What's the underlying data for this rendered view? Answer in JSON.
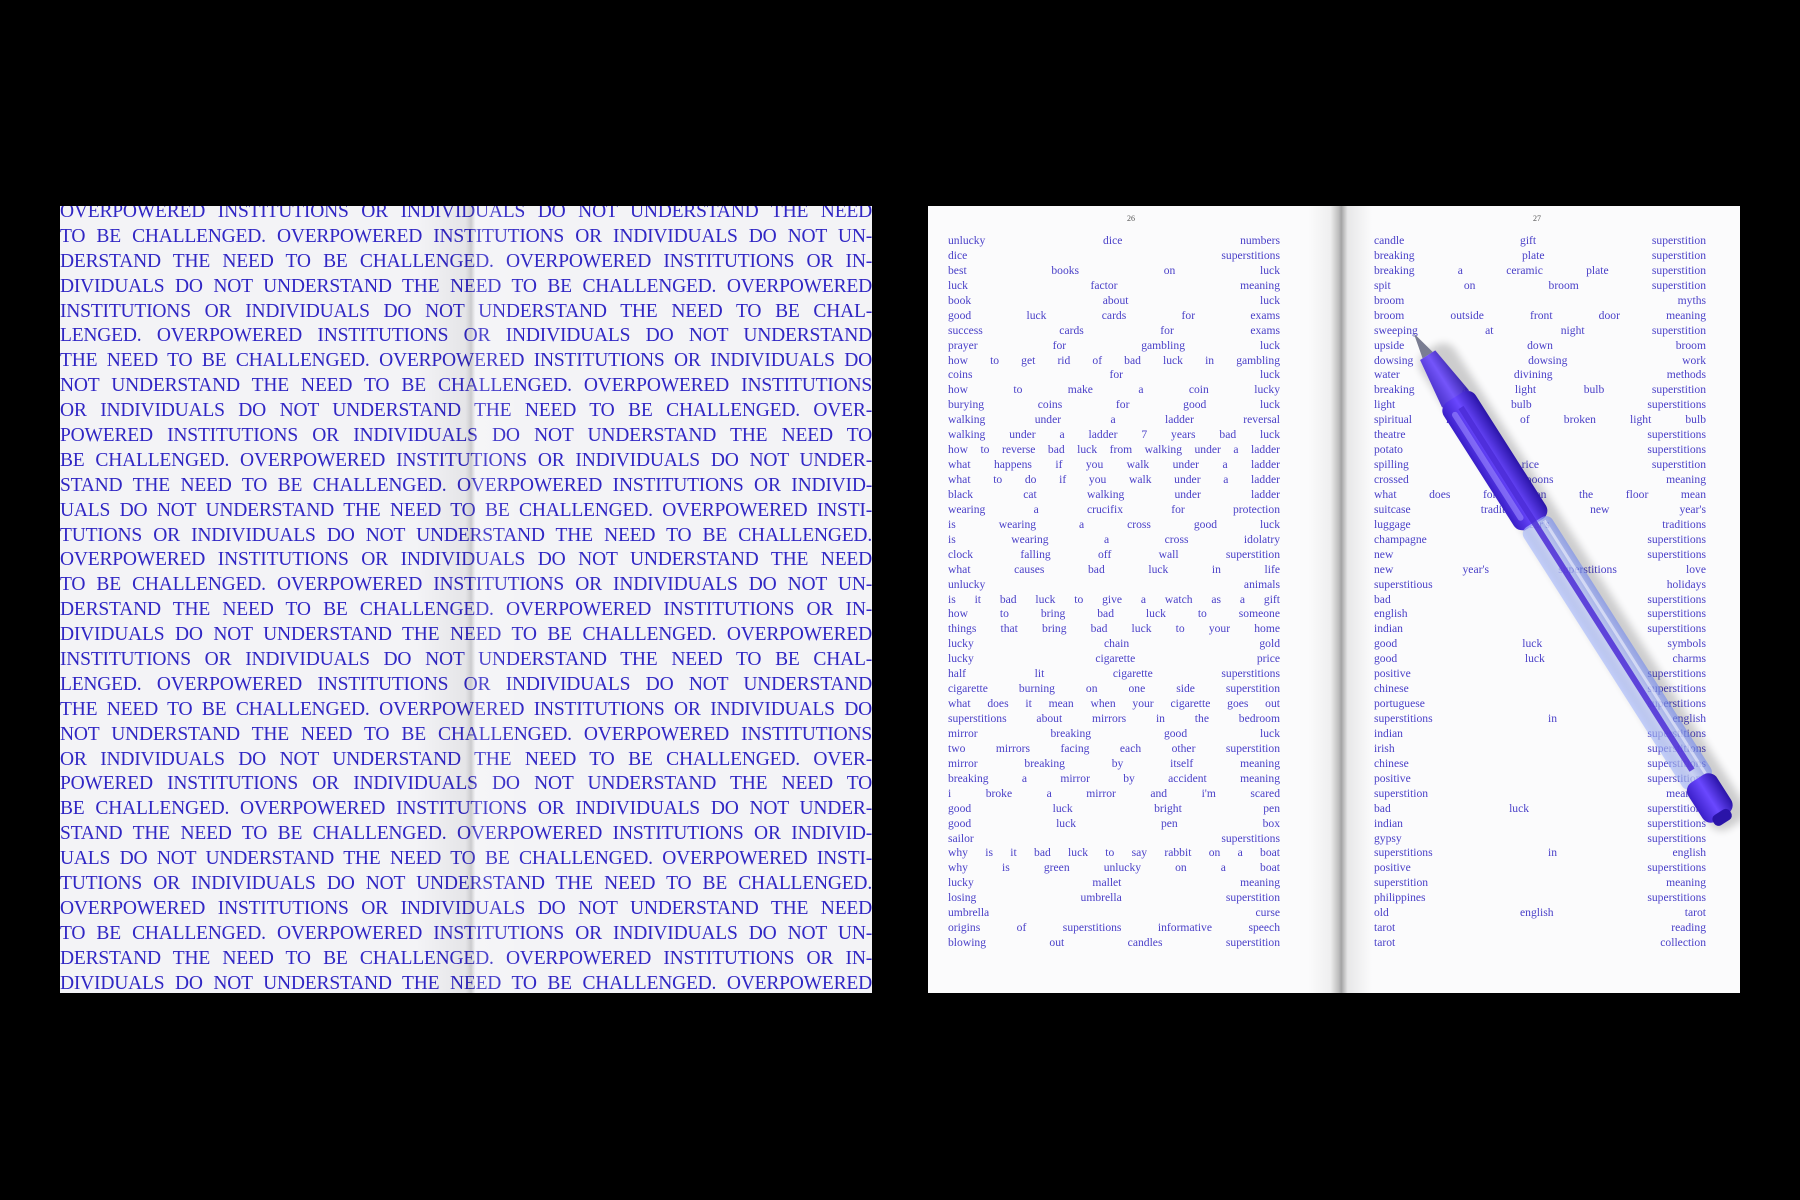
{
  "left_spread": {
    "lines": [
      "OVERPOWERED INSTITUTIONS OR INDIVIDUALS DO NOT UNDERSTAND THE NEED",
      "TO BE CHALLENGED. OVERPOWERED INSTITUTIONS OR INDIVIDUALS DO NOT UN-",
      "DERSTAND THE NEED TO BE CHALLENGED. OVERPOWERED INSTITUTIONS OR IN-",
      "DIVIDUALS DO NOT UNDERSTAND THE NEED TO BE CHALLENGED. OVERPOWERED",
      "INSTITUTIONS OR INDIVIDUALS DO NOT UNDERSTAND THE NEED TO BE CHAL-",
      "LENGED. OVERPOWERED INSTITUTIONS OR INDIVIDUALS DO NOT UNDERSTAND",
      "THE NEED TO BE CHALLENGED. OVERPOWERED INSTITUTIONS OR INDIVIDUALS DO",
      "NOT UNDERSTAND THE NEED TO BE CHALLENGED. OVERPOWERED INSTITUTIONS",
      "OR INDIVIDUALS DO NOT UNDERSTAND THE NEED TO BE CHALLENGED. OVER-",
      "POWERED INSTITUTIONS OR INDIVIDUALS DO NOT UNDERSTAND THE NEED TO",
      "BE CHALLENGED. OVERPOWERED INSTITUTIONS OR INDIVIDUALS DO NOT UNDER-",
      "STAND THE NEED TO BE CHALLENGED. OVERPOWERED INSTITUTIONS OR INDIVID-",
      "UALS DO NOT UNDERSTAND THE NEED TO BE CHALLENGED. OVERPOWERED INSTI-",
      "TUTIONS OR INDIVIDUALS DO NOT UNDERSTAND THE NEED TO BE CHALLENGED.",
      "OVERPOWERED INSTITUTIONS OR INDIVIDUALS DO NOT UNDERSTAND THE NEED",
      "TO BE CHALLENGED. OVERPOWERED INSTITUTIONS OR INDIVIDUALS DO NOT UN-",
      "DERSTAND THE NEED TO BE CHALLENGED. OVERPOWERED INSTITUTIONS OR IN-",
      "DIVIDUALS DO NOT UNDERSTAND THE NEED TO BE CHALLENGED. OVERPOWERED",
      "INSTITUTIONS OR INDIVIDUALS DO NOT UNDERSTAND THE NEED TO BE CHAL-",
      "LENGED. OVERPOWERED INSTITUTIONS OR INDIVIDUALS DO NOT UNDERSTAND",
      "THE NEED TO BE CHALLENGED. OVERPOWERED INSTITUTIONS OR INDIVIDUALS DO",
      "NOT UNDERSTAND THE NEED TO BE CHALLENGED. OVERPOWERED INSTITUTIONS",
      "OR INDIVIDUALS DO NOT UNDERSTAND THE NEED TO BE CHALLENGED. OVER-",
      "POWERED INSTITUTIONS OR INDIVIDUALS DO NOT UNDERSTAND THE NEED TO",
      "BE CHALLENGED. OVERPOWERED INSTITUTIONS OR INDIVIDUALS DO NOT UNDER-",
      "STAND THE NEED TO BE CHALLENGED. OVERPOWERED INSTITUTIONS OR INDIVID-",
      "UALS DO NOT UNDERSTAND THE NEED TO BE CHALLENGED. OVERPOWERED INSTI-",
      "TUTIONS OR INDIVIDUALS DO NOT UNDERSTAND THE NEED TO BE CHALLENGED.",
      "OVERPOWERED INSTITUTIONS OR INDIVIDUALS DO NOT UNDERSTAND THE NEED",
      "TO BE CHALLENGED. OVERPOWERED INSTITUTIONS OR INDIVIDUALS DO NOT UN-",
      "DERSTAND THE NEED TO BE CHALLENGED. OVERPOWERED INSTITUTIONS OR IN-",
      "DIVIDUALS DO NOT UNDERSTAND THE NEED TO BE CHALLENGED. OVERPOWERED"
    ]
  },
  "right_spread": {
    "left_page": {
      "number": "26",
      "lines": [
        "unlucky dice numbers",
        "dice superstitions",
        "best books on luck",
        "luck factor meaning",
        "book about luck",
        "good luck cards for exams",
        "success cards for exams",
        "prayer for gambling luck",
        "how to get rid of bad luck in gambling",
        "coins for luck",
        "how to make a coin lucky",
        "burying coins for good luck",
        "walking under a ladder reversal",
        "walking under a ladder 7 years bad luck",
        "how to reverse bad luck from walking under a ladder",
        "what happens if you walk under a ladder",
        "what to do if you walk under a ladder",
        "black cat walking under ladder",
        "wearing a crucifix for protection",
        "is wearing a cross good luck",
        "is wearing a cross idolatry",
        "clock falling off wall superstition",
        "what causes bad luck in life",
        "unlucky animals",
        "is it bad luck to give a watch as a gift",
        "how to bring bad luck to someone",
        "things that bring bad luck to your home",
        "lucky chain gold",
        "lucky cigarette price",
        "half lit cigarette superstitions",
        "cigarette burning on one side superstition",
        "what does it mean when your cigarette goes out",
        "superstitions about mirrors in the bedroom",
        "mirror breaking good luck",
        "two mirrors facing each other superstition",
        "mirror breaking by itself meaning",
        "breaking a mirror by accident meaning",
        "i broke a mirror and i'm scared",
        "good luck bright pen",
        "good luck pen box",
        "sailor superstitions",
        "why is it bad luck to say rabbit on a boat",
        "why is green unlucky on a boat",
        "lucky mallet meaning",
        "losing umbrella superstition",
        "umbrella curse",
        "origins of superstitions informative speech",
        "blowing out candles superstition"
      ]
    },
    "right_page": {
      "number": "27",
      "lines": [
        "candle gift superstition",
        "breaking plate superstition",
        "breaking a ceramic plate superstition",
        "spit on broom superstition",
        "broom myths",
        "broom outside front door meaning",
        "sweeping at night superstition",
        "upside down broom",
        "dowsing dowsing work",
        "water divining methods",
        "breaking a light bulb superstition",
        "light bulb superstitions",
        "spiritual meaning of broken light bulb",
        "theatre superstitions",
        "potato superstitions",
        "spilling rice superstition",
        "crossed spoons meaning",
        "what does fork on the floor mean",
        "suitcase tradition new year's",
        "luggage year's traditions",
        "champagne superstitions",
        "new superstitions",
        "new year's superstitions love",
        "superstitious holidays",
        "bad superstitions",
        "english superstitions",
        "indian superstitions",
        "good luck symbols",
        "good luck charms",
        "positive superstitions",
        "chinese superstitions",
        "portuguese superstitions",
        "superstitions in english",
        "indian superstitions",
        "irish superstitions",
        "chinese superstitions",
        "positive superstitions",
        "superstition meaning",
        "bad luck superstitions",
        "indian superstitions",
        "gypsy superstitions",
        "superstitions in english",
        "positive superstitions",
        "superstition meaning",
        "philippines superstitions",
        "old english tarot",
        "tarot reading",
        "tarot collection"
      ]
    }
  },
  "colors": {
    "ink_blue": "#3026c4",
    "index_blue": "#4a40c8",
    "pen_purple": "#4b2bd6",
    "background": "#000000"
  }
}
